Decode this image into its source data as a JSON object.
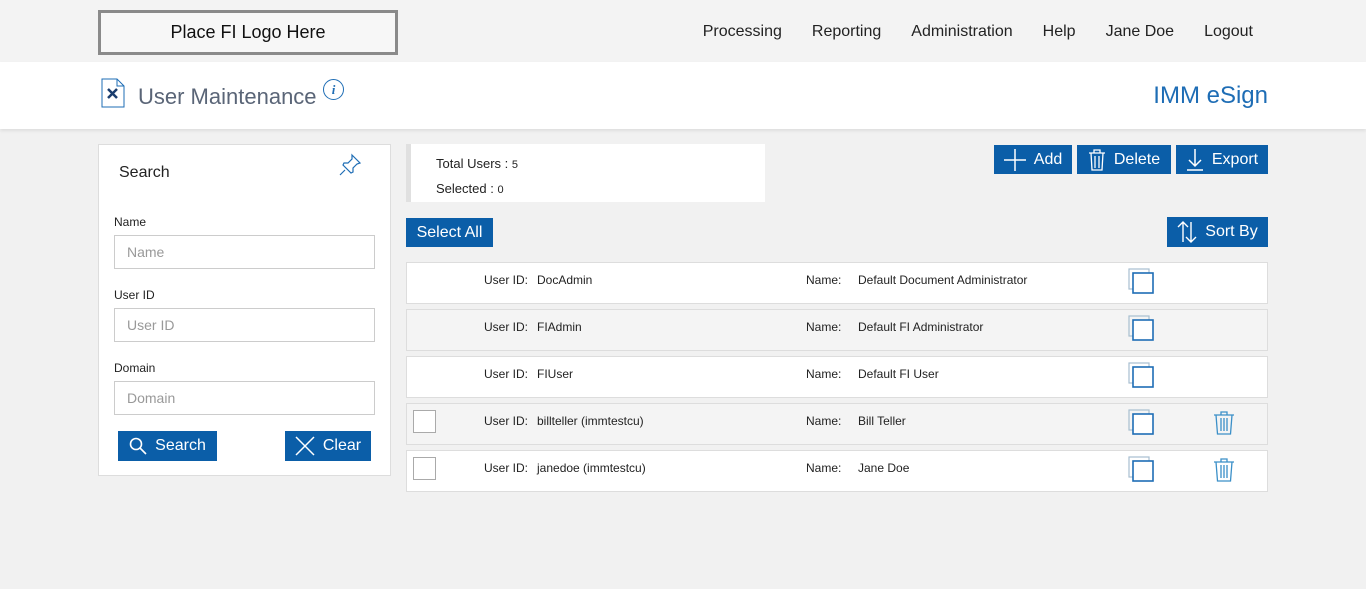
{
  "topbar": {
    "logo_text": "Place FI Logo Here",
    "nav": [
      "Processing",
      "Reporting",
      "Administration",
      "Help",
      "Jane Doe",
      "Logout"
    ]
  },
  "header": {
    "title": "User Maintenance",
    "info_icon": "i",
    "brand": "IMM eSign"
  },
  "search": {
    "title": "Search",
    "name_label": "Name",
    "name_placeholder": "Name",
    "userid_label": "User ID",
    "userid_placeholder": "User ID",
    "domain_label": "Domain",
    "domain_placeholder": "Domain",
    "search_btn": "Search",
    "clear_btn": "Clear"
  },
  "stats": {
    "total_label": "Total Users : ",
    "total": "5",
    "selected_label": "Selected : ",
    "selected": "0"
  },
  "toolbar": {
    "add": "Add",
    "delete": "Delete",
    "export": "Export",
    "select_all": "Select All",
    "sort_by": "Sort By"
  },
  "accent": "#0b5ea8",
  "users": [
    {
      "uid_label": "User ID:",
      "uid": "DocAdmin",
      "name_label": "Name:",
      "name": "Default Document Administrator",
      "checkbox": false,
      "deletable": false
    },
    {
      "uid_label": "User ID:",
      "uid": "FIAdmin",
      "name_label": "Name:",
      "name": "Default FI Administrator",
      "checkbox": false,
      "deletable": false
    },
    {
      "uid_label": "User ID:",
      "uid": "FIUser",
      "name_label": "Name:",
      "name": "Default FI User",
      "checkbox": false,
      "deletable": false
    },
    {
      "uid_label": "User ID:",
      "uid": "billteller (immtestcu)",
      "name_label": "Name:",
      "name": "Bill Teller",
      "checkbox": true,
      "deletable": true
    },
    {
      "uid_label": "User ID:",
      "uid": "janedoe (immtestcu)",
      "name_label": "Name:",
      "name": "Jane Doe",
      "checkbox": true,
      "deletable": true
    }
  ]
}
